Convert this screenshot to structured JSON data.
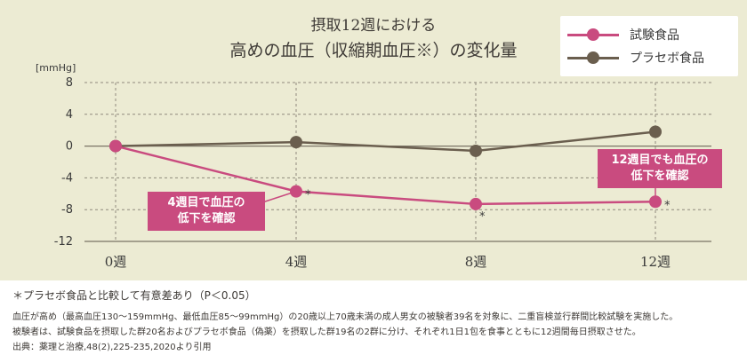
{
  "chart_data": {
    "type": "line",
    "title": [
      "摂取12週における",
      "高めの血圧（収縮期血圧※）の変化量"
    ],
    "ylabel": "[mmHg]",
    "categories": [
      "0週",
      "4週",
      "8週",
      "12週"
    ],
    "yticks": [
      "8",
      "4",
      "0",
      "-4",
      "-8",
      "-12"
    ],
    "ylim": [
      -12,
      8
    ],
    "grid": true,
    "legend_position": "top-right",
    "series": [
      {
        "name": "試験食品",
        "values": [
          0,
          -5.7,
          -7.3,
          -7.0
        ],
        "color": "#c94b7f",
        "significance": [
          "",
          "*",
          "*",
          "*"
        ]
      },
      {
        "name": "プラセボ食品",
        "values": [
          0,
          0.5,
          -0.6,
          1.8
        ],
        "color": "#6a5e4e"
      }
    ],
    "annotations": [
      {
        "text": "4週目で血圧の\n低下を確認",
        "points_to": "4週"
      },
      {
        "text": "12週目でも血圧の\n低下を確認",
        "points_to": "12週"
      }
    ]
  },
  "notes": [
    "＊プラセボ食品と比較して有意差あり（P＜0.05）",
    "血圧が高め（最高血圧130～159mmHg、最低血圧85～99mmHg）の20歳以上70歳未満の成人男女の被験者39名を対象に、二重盲検並行群間比較試験を実施した。",
    "被験者は、試験食品を摂取した群20名およびプラセボ食品（偽薬）を摂取した群19名の2群に分け、それぞれ1日1包を食事とともに12週間毎日摂取させた。",
    "出典：薬理と治療,48(2),225-235,2020より引用"
  ]
}
